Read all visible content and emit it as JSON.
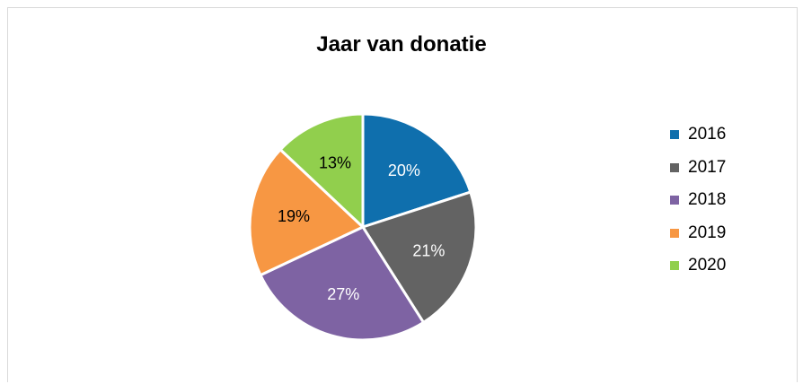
{
  "chart_data": {
    "type": "pie",
    "title": "Jaar van donatie",
    "categories": [
      "2016",
      "2017",
      "2018",
      "2019",
      "2020"
    ],
    "values": [
      20,
      21,
      27,
      19,
      13
    ],
    "labels": [
      "20%",
      "21%",
      "27%",
      "19%",
      "13%"
    ],
    "colors": [
      "#0f6fad",
      "#636363",
      "#7e63a3",
      "#f79743",
      "#91cf4d"
    ],
    "label_colors": [
      "#ffffff",
      "#ffffff",
      "#ffffff",
      "#000000",
      "#000000"
    ],
    "legend_position": "right",
    "start_angle_deg": 0,
    "direction": "clockwise"
  }
}
